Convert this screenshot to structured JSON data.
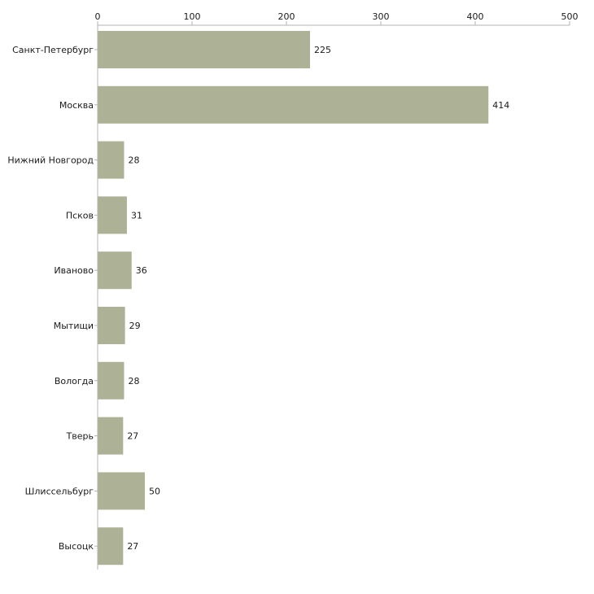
{
  "chart_data": {
    "type": "bar",
    "orientation": "horizontal",
    "title": "",
    "xlabel": "",
    "ylabel": "",
    "xlim": [
      0,
      500
    ],
    "x_ticks": [
      0,
      100,
      200,
      300,
      400,
      500
    ],
    "x_axis_position": "top",
    "grid": false,
    "legend": "none",
    "bar_color": "#adb296",
    "axis_color": "#b3b3b3",
    "categories": [
      "Санкт-Петербург",
      "Москва",
      "Нижний Новгород",
      "Псков",
      "Иваново",
      "Мытищи",
      "Вологда",
      "Тверь",
      "Шлиссельбург",
      "Высоцк"
    ],
    "values": [
      225,
      414,
      28,
      31,
      36,
      29,
      28,
      27,
      50,
      27
    ]
  }
}
